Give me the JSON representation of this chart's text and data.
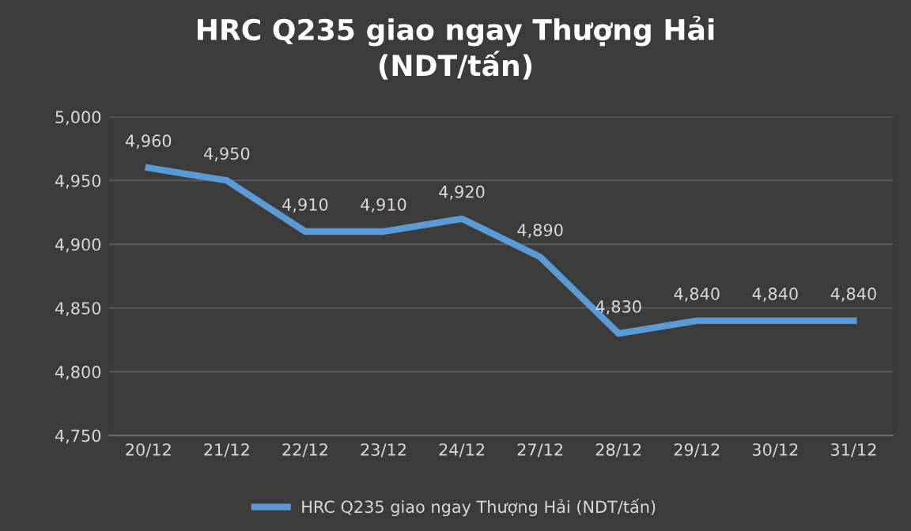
{
  "chart_data": {
    "type": "line",
    "title": "HRC Q235 giao ngay Thượng Hải\n(NDT/tấn)",
    "categories": [
      "20/12",
      "21/12",
      "22/12",
      "23/12",
      "24/12",
      "27/12",
      "28/12",
      "29/12",
      "30/12",
      "31/12"
    ],
    "series": [
      {
        "name": "HRC Q235 giao ngay Thượng Hải (NDT/tấn)",
        "color": "#5b9bd5",
        "values": [
          4960,
          4950,
          4910,
          4910,
          4920,
          4890,
          4830,
          4840,
          4840,
          4840
        ],
        "value_labels": [
          "4,960",
          "4,950",
          "4,910",
          "4,910",
          "4,920",
          "4,890",
          "4,830",
          "4,840",
          "4,840",
          "4,840"
        ]
      }
    ],
    "ylim": [
      4750,
      5000
    ],
    "yticks": [
      {
        "value": 4750,
        "label": "4,750"
      },
      {
        "value": 4800,
        "label": "4,800"
      },
      {
        "value": 4850,
        "label": "4,850"
      },
      {
        "value": 4900,
        "label": "4,900"
      },
      {
        "value": 4950,
        "label": "4,950"
      },
      {
        "value": 5000,
        "label": "5,000"
      }
    ],
    "grid": "y",
    "legend": "bottom",
    "marker": "none",
    "line_style": "solid"
  }
}
